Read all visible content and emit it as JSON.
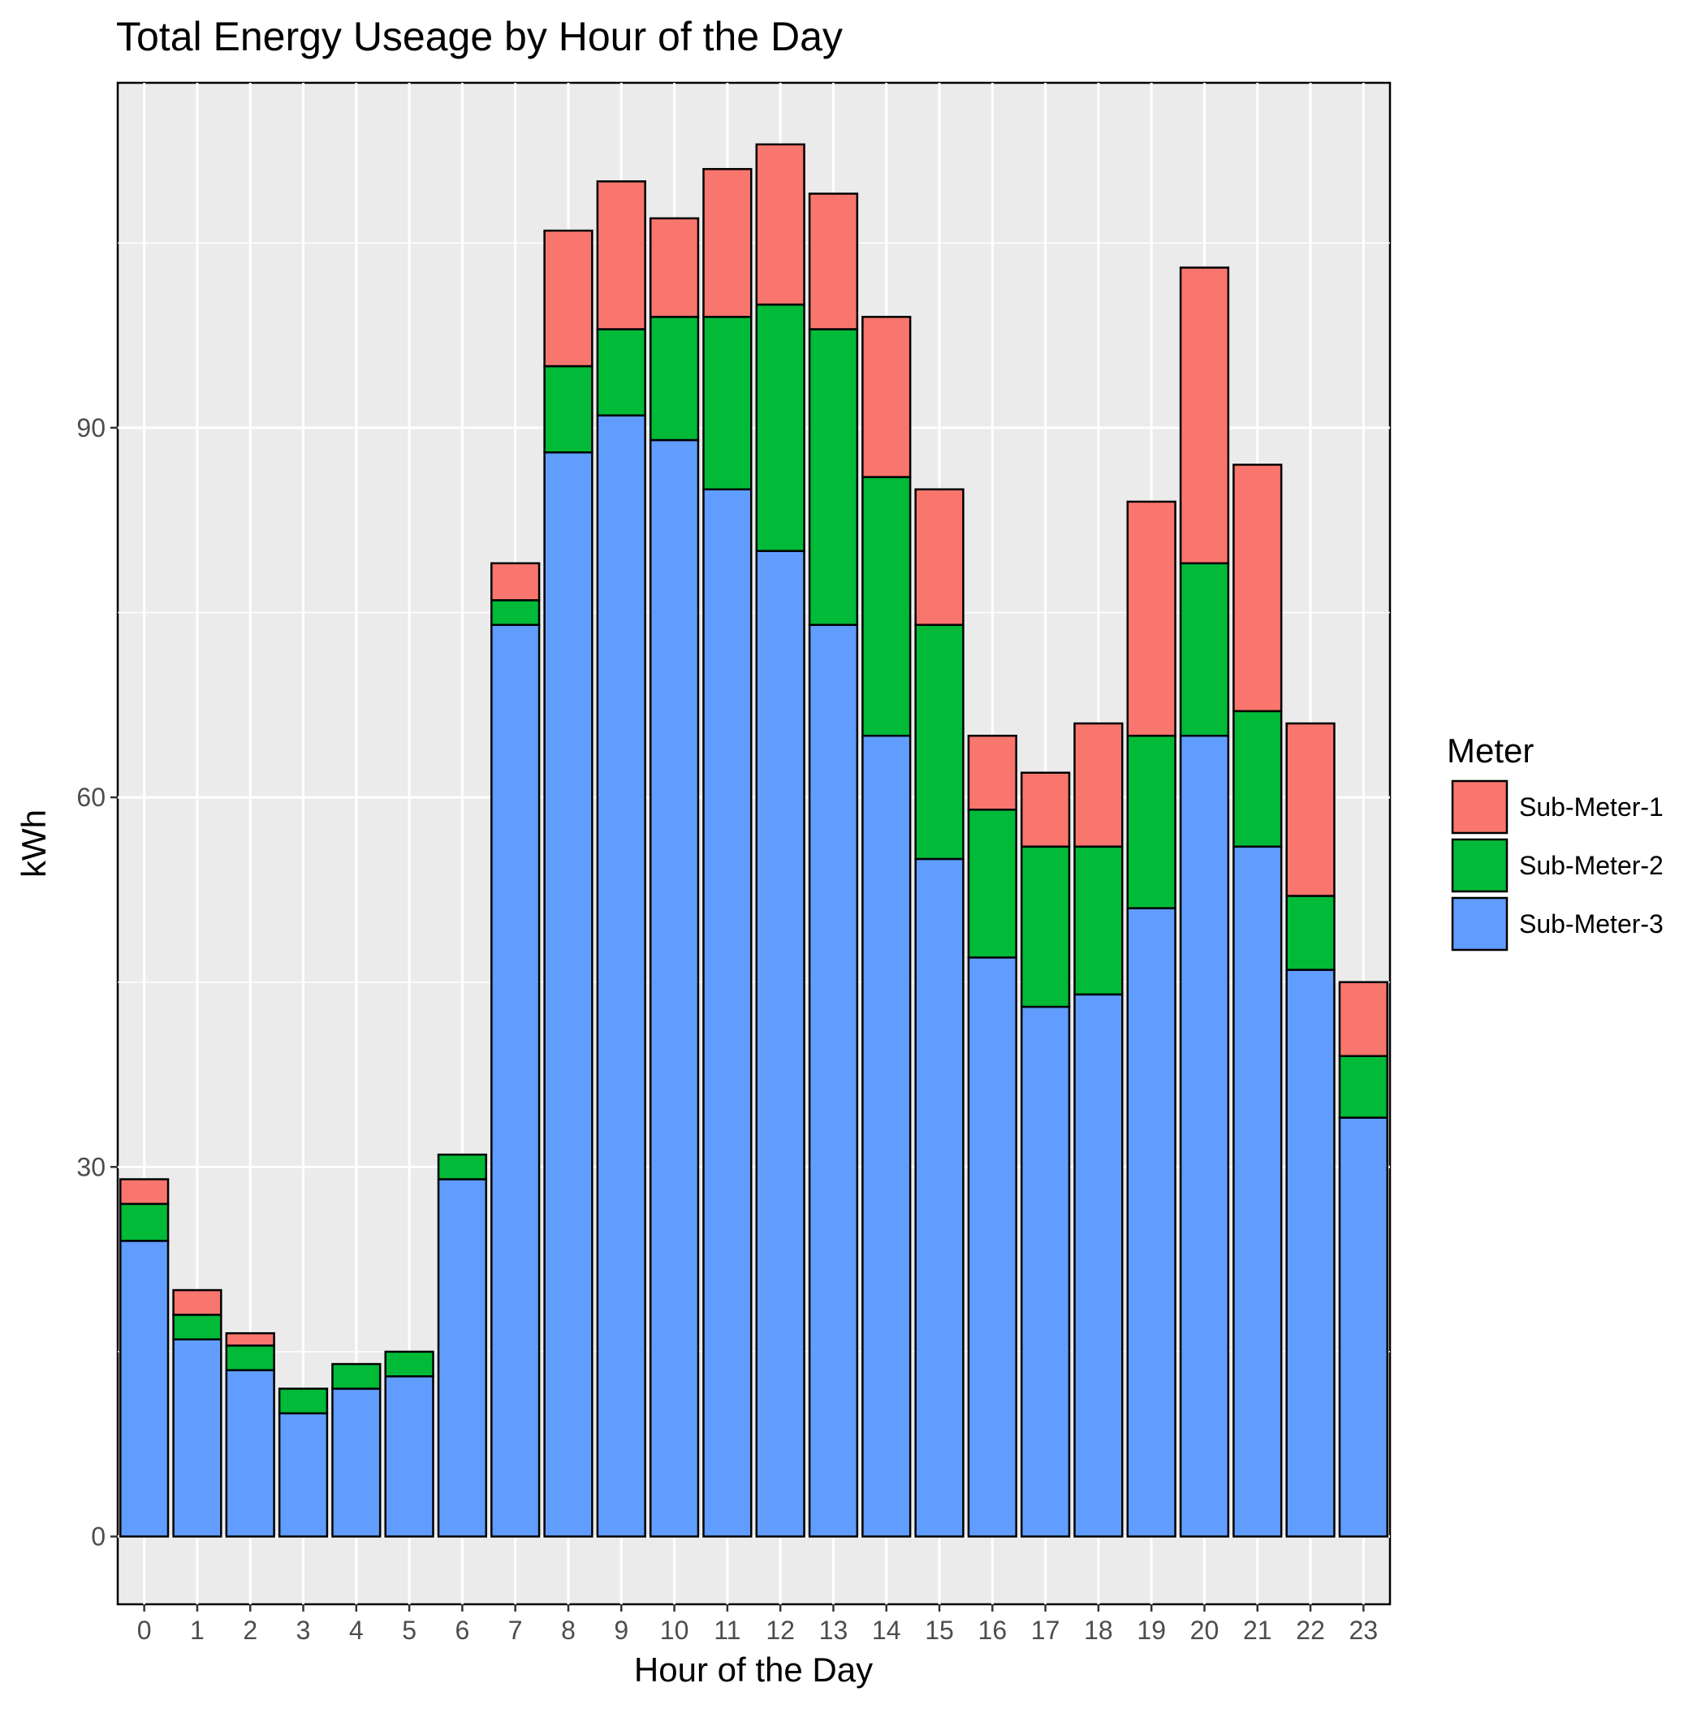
{
  "chart_data": {
    "type": "bar",
    "stacked": true,
    "title": "Total Energy Useage by Hour of the Day",
    "xlabel": "Hour of the Day",
    "ylabel": "kWh",
    "categories": [
      "0",
      "1",
      "2",
      "3",
      "4",
      "5",
      "6",
      "7",
      "8",
      "9",
      "10",
      "11",
      "12",
      "13",
      "14",
      "15",
      "16",
      "17",
      "18",
      "19",
      "20",
      "21",
      "22",
      "23"
    ],
    "series": [
      {
        "name": "Sub-Meter-3",
        "color": "#619CFF",
        "values": [
          24,
          16,
          13.5,
          10,
          12,
          13,
          29,
          74,
          88,
          91,
          89,
          85,
          80,
          74,
          65,
          55,
          47,
          43,
          44,
          51,
          65,
          56,
          46,
          34
        ]
      },
      {
        "name": "Sub-Meter-2",
        "color": "#00BA38",
        "values": [
          3,
          2,
          2,
          2,
          2,
          2,
          2,
          2,
          7,
          7,
          10,
          14,
          20,
          24,
          21,
          19,
          12,
          13,
          12,
          14,
          14,
          11,
          6,
          5
        ]
      },
      {
        "name": "Sub-Meter-1",
        "color": "#F8766D",
        "values": [
          2,
          2,
          1,
          0,
          0,
          0,
          0,
          3,
          11,
          12,
          8,
          12,
          13,
          11,
          13,
          11,
          6,
          6,
          10,
          19,
          24,
          20,
          14,
          6
        ]
      }
    ],
    "yticks": [
      0,
      30,
      60,
      90
    ],
    "ylim": [
      -5.5,
      118
    ],
    "grid": true,
    "legend": {
      "title": "Meter",
      "position": "right",
      "items": [
        "Sub-Meter-1",
        "Sub-Meter-2",
        "Sub-Meter-3"
      ]
    },
    "colors": {
      "panel": "#EBEBEB",
      "gridline": "#FFFFFF",
      "bar_outline": "#000000"
    }
  }
}
